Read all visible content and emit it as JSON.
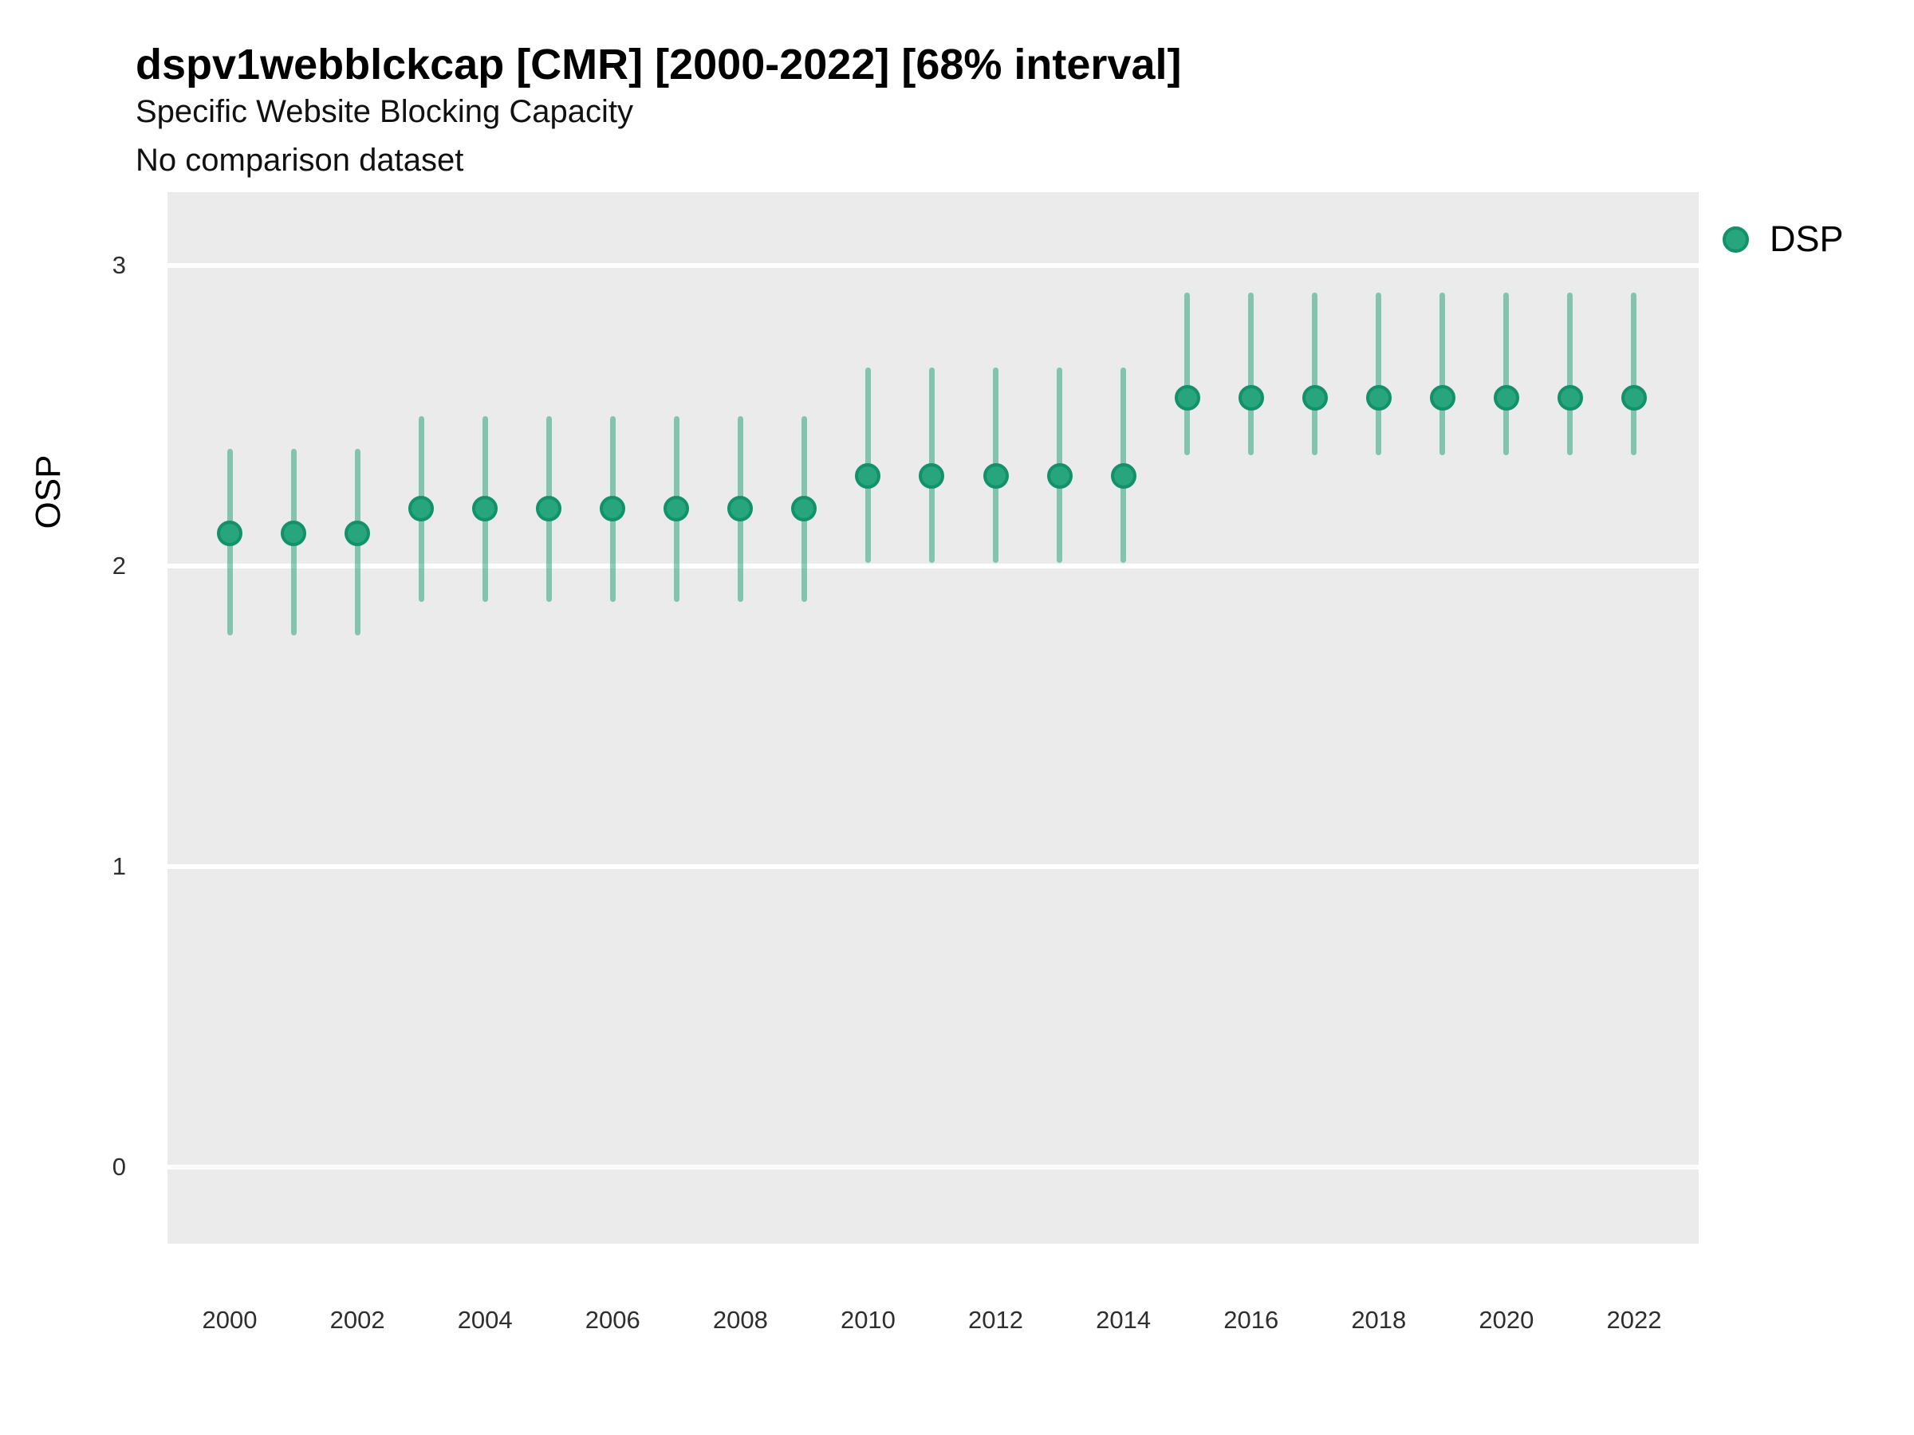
{
  "header": {
    "title": "dspv1webblckcap [CMR] [2000-2022] [68% interval]",
    "subtitle": "Specific Website Blocking Capacity",
    "note": "No comparison dataset"
  },
  "legend": {
    "position": "right",
    "items": [
      {
        "label": "DSP",
        "color": "#1B9E77"
      }
    ]
  },
  "chart_data": {
    "type": "scatter",
    "subtype": "pointrange-interval",
    "title": "dspv1webblckcap [CMR] [2000-2022] [68% interval]",
    "subtitle": "Specific Website Blocking Capacity",
    "note": "No comparison dataset",
    "interval": "68%",
    "xlabel": "",
    "ylabel": "OSP",
    "x": [
      2000,
      2001,
      2002,
      2003,
      2004,
      2005,
      2006,
      2007,
      2008,
      2009,
      2010,
      2011,
      2012,
      2013,
      2014,
      2015,
      2016,
      2017,
      2018,
      2019,
      2020,
      2021,
      2022
    ],
    "series": [
      {
        "name": "DSP",
        "estimates": [
          2.11,
          2.11,
          2.11,
          2.19,
          2.19,
          2.19,
          2.19,
          2.19,
          2.19,
          2.19,
          2.3,
          2.3,
          2.3,
          2.3,
          2.3,
          2.56,
          2.56,
          2.56,
          2.56,
          2.56,
          2.56,
          2.56,
          2.56
        ],
        "lower_68": [
          1.77,
          1.77,
          1.77,
          1.88,
          1.88,
          1.88,
          1.88,
          1.88,
          1.88,
          1.88,
          2.01,
          2.01,
          2.01,
          2.01,
          2.01,
          2.37,
          2.37,
          2.37,
          2.37,
          2.37,
          2.37,
          2.37,
          2.37
        ],
        "upper_68": [
          2.39,
          2.39,
          2.39,
          2.5,
          2.5,
          2.5,
          2.5,
          2.5,
          2.5,
          2.5,
          2.66,
          2.66,
          2.66,
          2.66,
          2.66,
          2.91,
          2.91,
          2.91,
          2.91,
          2.91,
          2.91,
          2.91,
          2.91
        ]
      }
    ],
    "x_tick_labels": [
      "2000",
      "2002",
      "2004",
      "2006",
      "2008",
      "2010",
      "2012",
      "2014",
      "2016",
      "2018",
      "2020",
      "2022"
    ],
    "y_ticks": [
      0,
      1,
      2,
      3
    ],
    "ylim": [
      -0.26,
      3.25
    ],
    "xlim": [
      1999,
      2023
    ],
    "grid": "major-horizontal-only",
    "legend_position": "right",
    "colors": {
      "point_fill": "#27A57C",
      "point_stroke": "#12916A",
      "interval_line": "rgba(27,158,119,0.5)",
      "panel_background": "#EBEBEB",
      "gridline": "#FFFFFF"
    }
  }
}
